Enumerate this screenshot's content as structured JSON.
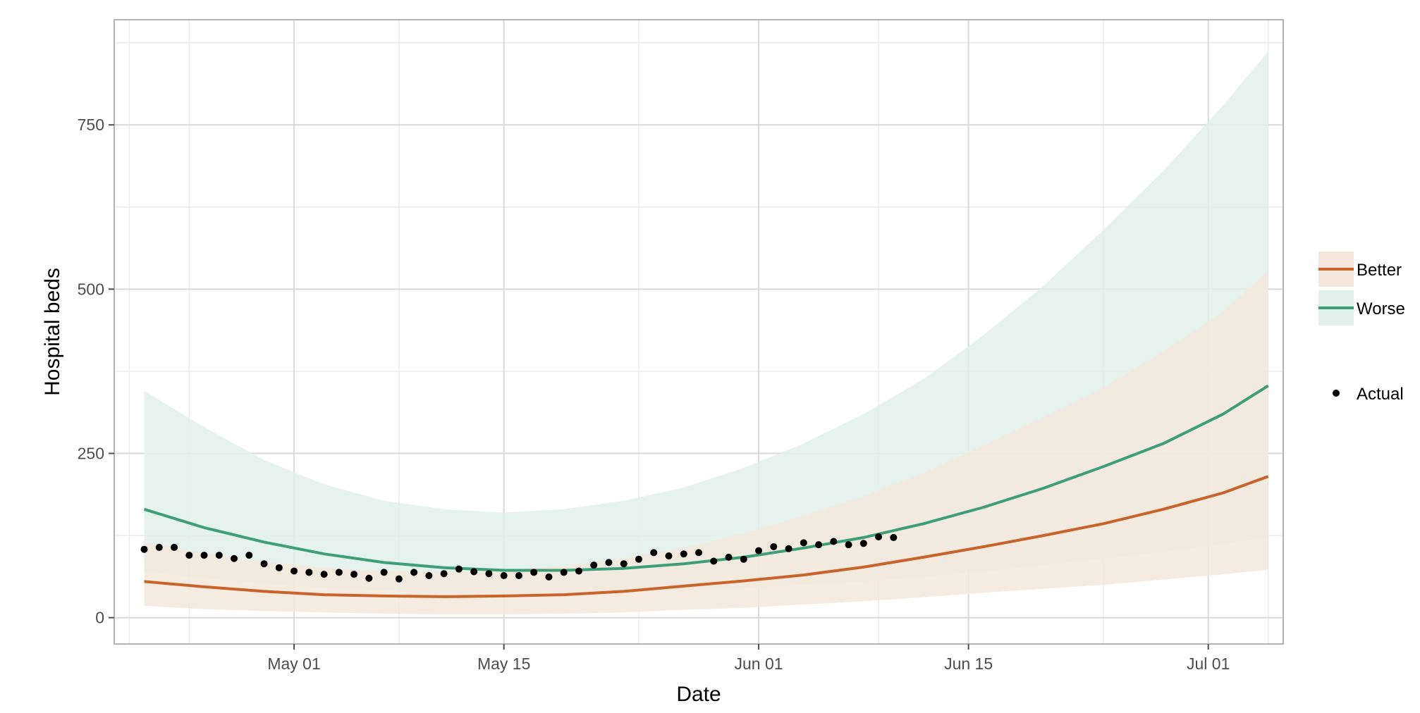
{
  "chart_data": {
    "type": "line",
    "xlabel": "Date",
    "ylabel": "Hospital beds",
    "x_axis": {
      "scale": "date",
      "range": [
        "2020-04-19",
        "2020-07-06"
      ],
      "ticks": [
        {
          "date": "2020-05-01",
          "label": "May 01"
        },
        {
          "date": "2020-05-15",
          "label": "May 15"
        },
        {
          "date": "2020-06-01",
          "label": "Jun 01"
        },
        {
          "date": "2020-06-15",
          "label": "Jun 15"
        },
        {
          "date": "2020-07-01",
          "label": "Jul 01"
        }
      ],
      "minor_ticks": [
        "2020-04-20",
        "2020-04-24",
        "2020-05-08",
        "2020-05-24",
        "2020-06-09",
        "2020-06-24",
        "2020-07-05"
      ]
    },
    "y_axis": {
      "range": [
        -40,
        910
      ],
      "ticks": [
        0,
        250,
        500,
        750
      ],
      "minor_ticks": [
        125,
        375,
        625,
        875
      ]
    },
    "grid": true,
    "legend_position": "right",
    "legend": {
      "series_entries": [
        "Better",
        "Worse"
      ],
      "point_entry": "Actual"
    },
    "series": [
      {
        "name": "Better",
        "color": "#c8632b",
        "band_color": "#f5e7dc",
        "points": [
          {
            "x": "2020-04-21",
            "y": 55,
            "lo": 18,
            "hi": 115
          },
          {
            "x": "2020-04-25",
            "y": 47,
            "lo": 13,
            "hi": 98
          },
          {
            "x": "2020-04-29",
            "y": 40,
            "lo": 10,
            "hi": 85
          },
          {
            "x": "2020-05-03",
            "y": 35,
            "lo": 8,
            "hi": 76
          },
          {
            "x": "2020-05-07",
            "y": 33,
            "lo": 6,
            "hi": 71
          },
          {
            "x": "2020-05-11",
            "y": 32,
            "lo": 5,
            "hi": 70
          },
          {
            "x": "2020-05-15",
            "y": 33,
            "lo": 5,
            "hi": 72
          },
          {
            "x": "2020-05-19",
            "y": 35,
            "lo": 6,
            "hi": 79
          },
          {
            "x": "2020-05-23",
            "y": 40,
            "lo": 8,
            "hi": 90
          },
          {
            "x": "2020-05-27",
            "y": 48,
            "lo": 12,
            "hi": 106
          },
          {
            "x": "2020-05-31",
            "y": 56,
            "lo": 15,
            "hi": 128
          },
          {
            "x": "2020-06-04",
            "y": 65,
            "lo": 20,
            "hi": 155
          },
          {
            "x": "2020-06-08",
            "y": 77,
            "lo": 25,
            "hi": 185
          },
          {
            "x": "2020-06-12",
            "y": 92,
            "lo": 31,
            "hi": 220
          },
          {
            "x": "2020-06-16",
            "y": 108,
            "lo": 38,
            "hi": 262
          },
          {
            "x": "2020-06-20",
            "y": 125,
            "lo": 44,
            "hi": 305
          },
          {
            "x": "2020-06-24",
            "y": 143,
            "lo": 50,
            "hi": 350
          },
          {
            "x": "2020-06-28",
            "y": 165,
            "lo": 58,
            "hi": 405
          },
          {
            "x": "2020-07-02",
            "y": 190,
            "lo": 66,
            "hi": 465
          },
          {
            "x": "2020-07-05",
            "y": 215,
            "lo": 73,
            "hi": 528
          }
        ]
      },
      {
        "name": "Worse",
        "color": "#3d9e78",
        "band_color": "#e1f0eb",
        "points": [
          {
            "x": "2020-04-21",
            "y": 165,
            "lo": 70,
            "hi": 345
          },
          {
            "x": "2020-04-25",
            "y": 137,
            "lo": 60,
            "hi": 290
          },
          {
            "x": "2020-04-29",
            "y": 115,
            "lo": 52,
            "hi": 240
          },
          {
            "x": "2020-05-03",
            "y": 97,
            "lo": 45,
            "hi": 203
          },
          {
            "x": "2020-05-07",
            "y": 84,
            "lo": 41,
            "hi": 178
          },
          {
            "x": "2020-05-11",
            "y": 76,
            "lo": 39,
            "hi": 165
          },
          {
            "x": "2020-05-15",
            "y": 72,
            "lo": 38,
            "hi": 160
          },
          {
            "x": "2020-05-19",
            "y": 72,
            "lo": 38,
            "hi": 165
          },
          {
            "x": "2020-05-23",
            "y": 75,
            "lo": 39,
            "hi": 178
          },
          {
            "x": "2020-05-27",
            "y": 82,
            "lo": 41,
            "hi": 198
          },
          {
            "x": "2020-05-31",
            "y": 92,
            "lo": 45,
            "hi": 228
          },
          {
            "x": "2020-06-04",
            "y": 106,
            "lo": 50,
            "hi": 265
          },
          {
            "x": "2020-06-08",
            "y": 122,
            "lo": 55,
            "hi": 310
          },
          {
            "x": "2020-06-12",
            "y": 143,
            "lo": 62,
            "hi": 363
          },
          {
            "x": "2020-06-16",
            "y": 168,
            "lo": 70,
            "hi": 430
          },
          {
            "x": "2020-06-20",
            "y": 197,
            "lo": 80,
            "hi": 505
          },
          {
            "x": "2020-06-24",
            "y": 230,
            "lo": 90,
            "hi": 590
          },
          {
            "x": "2020-06-28",
            "y": 265,
            "lo": 100,
            "hi": 680
          },
          {
            "x": "2020-07-02",
            "y": 310,
            "lo": 112,
            "hi": 780
          },
          {
            "x": "2020-07-05",
            "y": 353,
            "lo": 123,
            "hi": 862
          }
        ]
      }
    ],
    "points": {
      "name": "Actual",
      "color": "#000000",
      "data": [
        {
          "x": "2020-04-21",
          "y": 104
        },
        {
          "x": "2020-04-22",
          "y": 107
        },
        {
          "x": "2020-04-23",
          "y": 107
        },
        {
          "x": "2020-04-24",
          "y": 95
        },
        {
          "x": "2020-04-25",
          "y": 95
        },
        {
          "x": "2020-04-26",
          "y": 95
        },
        {
          "x": "2020-04-27",
          "y": 90
        },
        {
          "x": "2020-04-28",
          "y": 95
        },
        {
          "x": "2020-04-29",
          "y": 82
        },
        {
          "x": "2020-04-30",
          "y": 76
        },
        {
          "x": "2020-05-01",
          "y": 71
        },
        {
          "x": "2020-05-02",
          "y": 69
        },
        {
          "x": "2020-05-03",
          "y": 66
        },
        {
          "x": "2020-05-04",
          "y": 69
        },
        {
          "x": "2020-05-05",
          "y": 66
        },
        {
          "x": "2020-05-06",
          "y": 60
        },
        {
          "x": "2020-05-07",
          "y": 69
        },
        {
          "x": "2020-05-08",
          "y": 59
        },
        {
          "x": "2020-05-09",
          "y": 69
        },
        {
          "x": "2020-05-10",
          "y": 64
        },
        {
          "x": "2020-05-11",
          "y": 67
        },
        {
          "x": "2020-05-12",
          "y": 74
        },
        {
          "x": "2020-05-13",
          "y": 70
        },
        {
          "x": "2020-05-14",
          "y": 67
        },
        {
          "x": "2020-05-15",
          "y": 64
        },
        {
          "x": "2020-05-16",
          "y": 64
        },
        {
          "x": "2020-05-17",
          "y": 69
        },
        {
          "x": "2020-05-18",
          "y": 62
        },
        {
          "x": "2020-05-19",
          "y": 69
        },
        {
          "x": "2020-05-20",
          "y": 71
        },
        {
          "x": "2020-05-21",
          "y": 80
        },
        {
          "x": "2020-05-22",
          "y": 84
        },
        {
          "x": "2020-05-23",
          "y": 82
        },
        {
          "x": "2020-05-24",
          "y": 89
        },
        {
          "x": "2020-05-25",
          "y": 99
        },
        {
          "x": "2020-05-26",
          "y": 94
        },
        {
          "x": "2020-05-27",
          "y": 97
        },
        {
          "x": "2020-05-28",
          "y": 99
        },
        {
          "x": "2020-05-29",
          "y": 86
        },
        {
          "x": "2020-05-30",
          "y": 92
        },
        {
          "x": "2020-05-31",
          "y": 89
        },
        {
          "x": "2020-06-01",
          "y": 102
        },
        {
          "x": "2020-06-02",
          "y": 108
        },
        {
          "x": "2020-06-03",
          "y": 105
        },
        {
          "x": "2020-06-04",
          "y": 114
        },
        {
          "x": "2020-06-05",
          "y": 111
        },
        {
          "x": "2020-06-06",
          "y": 116
        },
        {
          "x": "2020-06-07",
          "y": 111
        },
        {
          "x": "2020-06-08",
          "y": 113
        },
        {
          "x": "2020-06-09",
          "y": 123
        },
        {
          "x": "2020-06-10",
          "y": 122
        }
      ]
    }
  }
}
